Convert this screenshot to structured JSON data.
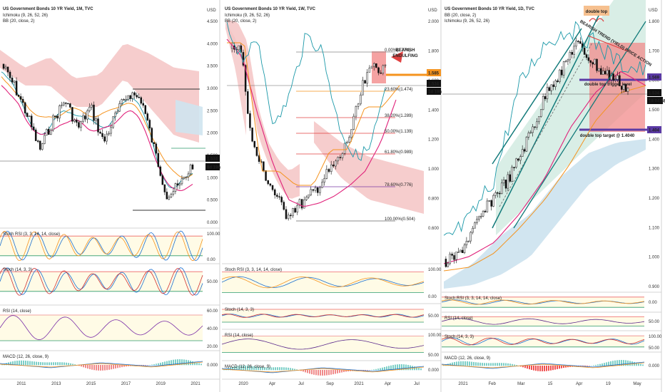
{
  "charts": [
    {
      "id": "left",
      "title": "US Government Bonds 10 YR Yield, 1M, TVC",
      "legend_lines": [
        "Ichimoku (9, 26, 52, 26)",
        "BB (20, close, 2)"
      ],
      "unit": "USD",
      "y_ticks": [
        "4.500",
        "4.000",
        "3.500",
        "3.000",
        "2.500",
        "2.000",
        "1.500",
        "1.000",
        "0.500",
        "0.000"
      ],
      "x_ticks": [
        "2011",
        "2013",
        "2015",
        "2017",
        "2019",
        "2021"
      ],
      "price_tag": "1.534",
      "countdown_tag": "8d 19h",
      "stoch_rsi_label": "Stoch RSI (3, 3, 14, 14, close)",
      "stoch_label": "Stoch (14, 3, 3)",
      "rsi_label": "RSI (14, close)",
      "macd_label": "MACD (12, 26, close, 9)",
      "stoch_rsi_ticks": [
        "100.00",
        "0.00"
      ],
      "stoch_ticks": [
        "50.00"
      ],
      "rsi_ticks": [
        "60.00",
        "40.00",
        "20.00"
      ],
      "macd_ticks": [
        "0.000"
      ]
    },
    {
      "id": "middle",
      "title": "US Government Bonds 10 YR Yield, 1W, TVC",
      "legend_lines": [
        "Ichimoku (9, 26, 52, 26)",
        "BB (20, close, 2)"
      ],
      "unit": "USD",
      "y_ticks": [
        "2.000",
        "1.800",
        "1.600",
        "1.400",
        "1.200",
        "1.000",
        "0.800",
        "0.600"
      ],
      "x_ticks": [
        "2020",
        "Apr",
        "Jul",
        "Sep",
        "2021",
        "Apr",
        "Jul"
      ],
      "price_tag": "1.534",
      "countdown_tag": "1d 19h",
      "level_tag": "1.585",
      "annotation": "BEARISH\nENGULFING",
      "fib_levels": [
        "0.00%(1.774)",
        "23.60%(1.474)",
        "38.20%(1.289)",
        "50.00%(1.139)",
        "61.80%(0.989)",
        "78.60%(0.776)",
        "100.00%(0.504)"
      ],
      "stoch_rsi_label": "Stoch RSI (3, 3, 14, 14, close)",
      "stoch_label": "Stoch (14, 3, 3)",
      "rsi_label": "RSI (14, close)",
      "macd_label": "MACD (12, 26, close, 9)",
      "stoch_rsi_ticks": [
        "100.00",
        "0.00"
      ],
      "stoch_ticks": [
        "50.00"
      ],
      "rsi_ticks": [
        "100.00",
        "50.00"
      ],
      "macd_ticks": [
        "0.000"
      ]
    },
    {
      "id": "right",
      "title": "US Government Bonds 10 YR Yield, 1D, TVC",
      "legend_lines": [
        "BB (20, close, 2)",
        "Ichimoku (9, 26, 52, 26)"
      ],
      "unit": "USD",
      "y_ticks": [
        "1.800",
        "1.700",
        "1.600",
        "1.500",
        "1.400",
        "1.300",
        "1.200",
        "1.100",
        "1.000",
        "0.900"
      ],
      "x_ticks": [
        "2021",
        "Feb",
        "Mar",
        "15",
        "Apr",
        "19",
        "May"
      ],
      "price_tag": "1.534",
      "countdown_tag": "18:04:58",
      "level_tag_1": "1.569",
      "level_tag_2": "1.404",
      "double_top": "double top",
      "trigger": "double top trigger level",
      "target": "double top target @ 1.4040",
      "trend_text": "BEARISH TREND (YIELD) PRICE ACTION",
      "stoch_rsi_label": "Stoch RSI (3, 3, 14, 14, close)",
      "stoch_label": "Stoch (14, 3, 3)",
      "rsi_label": "RSI (14, close)",
      "macd_label": "MACD (12, 26, close, 9)",
      "stoch_rsi_ticks": [
        "0.00"
      ],
      "rsi_ticks": [
        "50.00"
      ],
      "stoch_ticks": [
        "100.00",
        "50.00"
      ],
      "macd_ticks": [
        "0.000"
      ]
    }
  ],
  "colors": {
    "cloud_red": "#f4c4c4",
    "cloud_green": "#cfe4ef",
    "teal": "#1a98a8",
    "magenta": "#e0217a",
    "orange": "#f5931e",
    "purple": "#5b2a8c",
    "panel_fill": "#fffbe6",
    "tag_black": "#111111",
    "tag_orange": "#f5931e",
    "tag_purple": "#5b3aa5"
  }
}
